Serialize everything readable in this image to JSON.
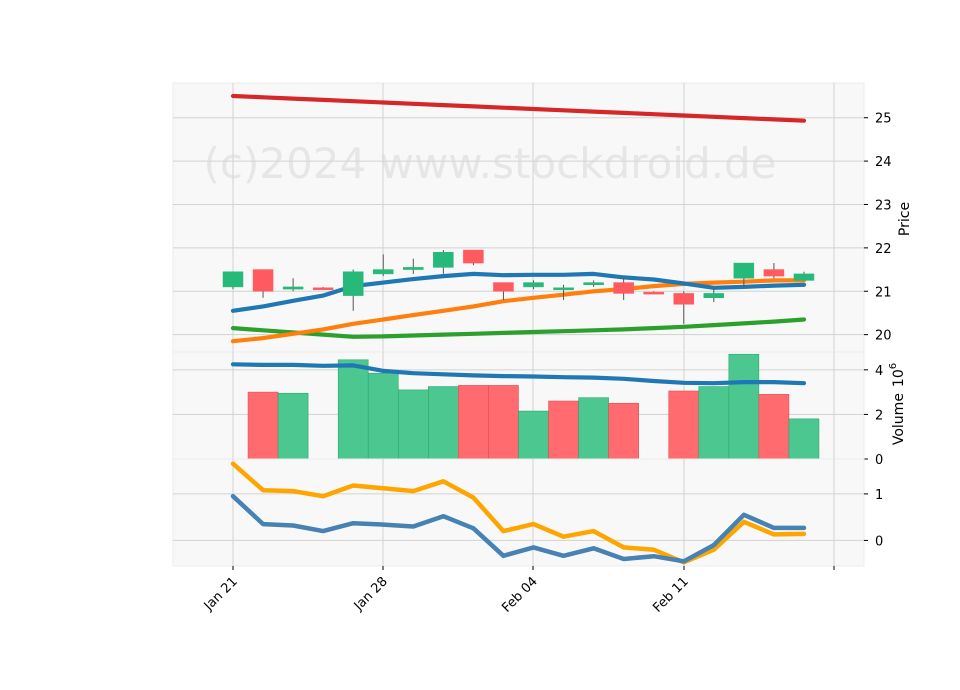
{
  "watermark": "(c)2024 www.stockdroid.de",
  "chart_data": {
    "type": "candlestick",
    "x_ticks": [
      "Jan 21",
      "Jan 28",
      "Feb 04",
      "Feb 11"
    ],
    "colors": {
      "up": "#26b97a",
      "down": "#ff5a5f",
      "ma_long": "#d62728",
      "ma_mid": "#2ca02c",
      "ma_orange": "#ff7f0e",
      "ma_blue": "#1f77b4",
      "vol_ma": "#1f77b4",
      "ind_orange": "#ffa500",
      "ind_blue": "#4682b4"
    },
    "price_panel": {
      "ylabel": "Price",
      "ylim": [
        19.6,
        25.8
      ],
      "yticks": [
        20,
        21,
        22,
        23,
        24,
        25
      ],
      "candles": [
        {
          "day": 0,
          "open": 21.1,
          "high": 21.45,
          "low": 21.05,
          "close": 21.45
        },
        {
          "day": 1,
          "open": 21.5,
          "high": 21.5,
          "low": 20.85,
          "close": 21.0
        },
        {
          "day": 2,
          "open": 21.05,
          "high": 21.3,
          "low": 21.0,
          "close": 21.1
        },
        {
          "day": 3,
          "open": 21.08,
          "high": 21.1,
          "low": 21.05,
          "close": 21.06
        },
        {
          "day": 4,
          "open": 20.9,
          "high": 21.5,
          "low": 20.55,
          "close": 21.45
        },
        {
          "day": 5,
          "open": 21.4,
          "high": 21.85,
          "low": 21.35,
          "close": 21.5
        },
        {
          "day": 6,
          "open": 21.5,
          "high": 21.75,
          "low": 21.4,
          "close": 21.55
        },
        {
          "day": 7,
          "open": 21.55,
          "high": 21.95,
          "low": 21.4,
          "close": 21.9
        },
        {
          "day": 8,
          "open": 21.95,
          "high": 21.95,
          "low": 21.6,
          "close": 21.65
        },
        {
          "day": 9,
          "open": 21.2,
          "high": 21.2,
          "low": 20.8,
          "close": 21.0
        },
        {
          "day": 10,
          "open": 21.1,
          "high": 21.25,
          "low": 21.05,
          "close": 21.2
        },
        {
          "day": 11,
          "open": 21.05,
          "high": 21.15,
          "low": 20.8,
          "close": 21.08
        },
        {
          "day": 12,
          "open": 21.15,
          "high": 21.25,
          "low": 21.1,
          "close": 21.2
        },
        {
          "day": 13,
          "open": 21.2,
          "high": 21.3,
          "low": 20.8,
          "close": 20.95
        },
        {
          "day": 14,
          "open": 20.98,
          "high": 21.0,
          "low": 20.95,
          "close": 20.96
        },
        {
          "day": 15,
          "open": 20.95,
          "high": 21.0,
          "low": 20.25,
          "close": 20.7
        },
        {
          "day": 16,
          "open": 20.85,
          "high": 21.05,
          "low": 20.75,
          "close": 20.95
        },
        {
          "day": 17,
          "open": 21.3,
          "high": 21.65,
          "low": 21.1,
          "close": 21.65
        },
        {
          "day": 18,
          "open": 21.5,
          "high": 21.65,
          "low": 21.3,
          "close": 21.35
        },
        {
          "day": 19,
          "open": 21.25,
          "high": 21.45,
          "low": 21.25,
          "close": 21.4
        }
      ],
      "lines": [
        {
          "color": "ma_long",
          "values": [
            25.5,
            25.47,
            25.44,
            25.41,
            25.38,
            25.35,
            25.32,
            25.29,
            25.26,
            25.23,
            25.2,
            25.17,
            25.14,
            25.11,
            25.08,
            25.05,
            25.02,
            24.99,
            24.96,
            24.93
          ]
        },
        {
          "color": "ma_mid",
          "values": [
            20.15,
            20.1,
            20.05,
            20.0,
            19.95,
            19.96,
            19.98,
            20.0,
            20.02,
            20.04,
            20.06,
            20.08,
            20.1,
            20.12,
            20.15,
            20.18,
            20.22,
            20.26,
            20.3,
            20.35
          ]
        },
        {
          "color": "ma_orange",
          "values": [
            19.85,
            19.92,
            20.02,
            20.12,
            20.25,
            20.35,
            20.45,
            20.55,
            20.65,
            20.77,
            20.85,
            20.92,
            21.0,
            21.05,
            21.12,
            21.17,
            21.2,
            21.22,
            21.25,
            21.25
          ]
        },
        {
          "color": "ma_blue",
          "values": [
            20.55,
            20.65,
            20.78,
            20.9,
            21.12,
            21.2,
            21.28,
            21.35,
            21.4,
            21.37,
            21.38,
            21.38,
            21.4,
            21.32,
            21.27,
            21.18,
            21.08,
            21.1,
            21.13,
            21.15
          ]
        }
      ]
    },
    "volume_panel": {
      "ylabel": "Volume",
      "ylabel_exp": "6",
      "ylim": [
        0,
        4.8
      ],
      "yticks": [
        0,
        2,
        4
      ],
      "bars": [
        {
          "day": 1,
          "value": 3.0,
          "dir": "down"
        },
        {
          "day": 2,
          "value": 2.95,
          "dir": "up"
        },
        {
          "day": 4,
          "value": 4.45,
          "dir": "up"
        },
        {
          "day": 5,
          "value": 3.85,
          "dir": "up"
        },
        {
          "day": 6,
          "value": 3.1,
          "dir": "up"
        },
        {
          "day": 7,
          "value": 3.25,
          "dir": "up"
        },
        {
          "day": 8,
          "value": 3.3,
          "dir": "down"
        },
        {
          "day": 9,
          "value": 3.3,
          "dir": "down"
        },
        {
          "day": 10,
          "value": 2.15,
          "dir": "up"
        },
        {
          "day": 11,
          "value": 2.6,
          "dir": "down"
        },
        {
          "day": 12,
          "value": 2.75,
          "dir": "up"
        },
        {
          "day": 13,
          "value": 2.5,
          "dir": "down"
        },
        {
          "day": 15,
          "value": 3.05,
          "dir": "down"
        },
        {
          "day": 16,
          "value": 3.25,
          "dir": "up"
        },
        {
          "day": 17,
          "value": 4.7,
          "dir": "up"
        },
        {
          "day": 18,
          "value": 2.9,
          "dir": "down"
        },
        {
          "day": 19,
          "value": 1.8,
          "dir": "up"
        }
      ],
      "ma": [
        4.25,
        4.22,
        4.22,
        4.18,
        4.2,
        3.95,
        3.85,
        3.8,
        3.75,
        3.72,
        3.7,
        3.67,
        3.65,
        3.6,
        3.5,
        3.42,
        3.4,
        3.45,
        3.45,
        3.4
      ]
    },
    "indicator_panel": {
      "ylim": [
        -0.55,
        1.75
      ],
      "yticks": [
        0,
        1
      ],
      "series": [
        {
          "color": "ind_orange",
          "values": [
            1.65,
            1.08,
            1.06,
            0.95,
            1.18,
            1.12,
            1.06,
            1.27,
            0.92,
            0.2,
            0.35,
            0.08,
            0.2,
            -0.15,
            -0.2,
            -0.47,
            -0.2,
            0.4,
            0.13,
            0.14
          ]
        },
        {
          "color": "ind_blue",
          "values": [
            0.95,
            0.35,
            0.32,
            0.2,
            0.37,
            0.34,
            0.3,
            0.52,
            0.26,
            -0.33,
            -0.15,
            -0.33,
            -0.17,
            -0.4,
            -0.34,
            -0.45,
            -0.1,
            0.55,
            0.27,
            0.27
          ]
        }
      ]
    }
  }
}
